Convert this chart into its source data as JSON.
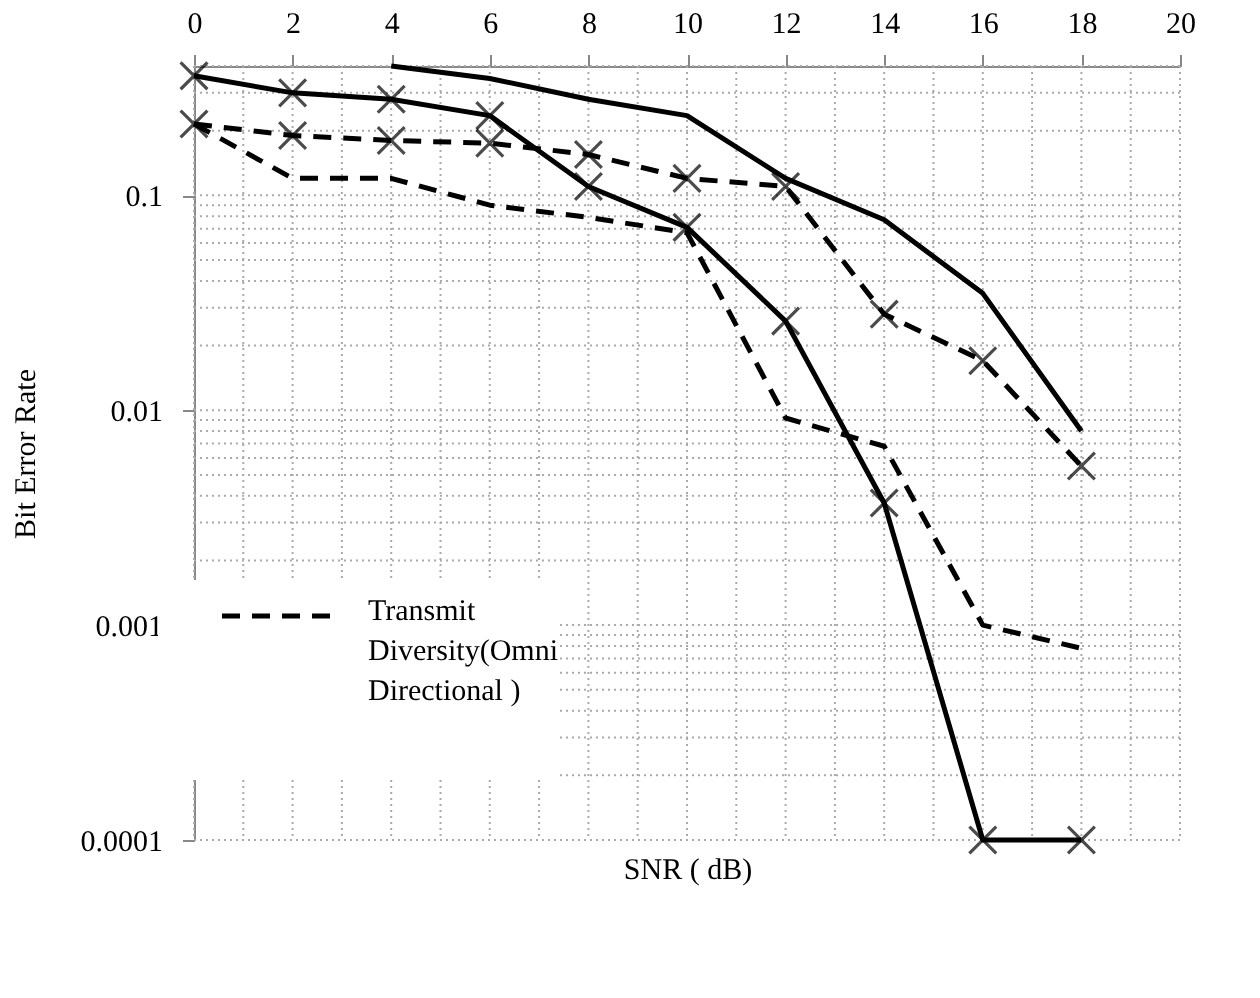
{
  "chart_data": {
    "type": "line",
    "xlabel": "SNR ( dB)",
    "ylabel": "Bit Error Rate",
    "x": [
      0,
      2,
      4,
      6,
      8,
      10,
      12,
      14,
      16,
      18
    ],
    "xlim": [
      0,
      20
    ],
    "xticks": [
      0,
      2,
      4,
      6,
      8,
      10,
      12,
      14,
      16,
      18,
      20
    ],
    "ylim": [
      0.0001,
      0.4
    ],
    "yticks": [
      0.0001,
      0.001,
      0.01,
      0.1
    ],
    "log": "y",
    "grid": true,
    "legend": "bottom left",
    "series": [
      {
        "color": "#000000",
        "line_style": "solid",
        "marker": "none",
        "values": [
          null,
          null,
          0.4,
          0.35,
          0.28,
          0.235,
          0.12,
          0.077,
          0.035,
          0.008
        ]
      },
      {
        "color": "#000000",
        "line_style": "solid",
        "marker": "cross",
        "values": [
          0.36,
          0.3,
          0.28,
          0.235,
          0.11,
          0.071,
          0.026,
          0.0037,
          0.0001,
          0.0001
        ]
      },
      {
        "color": "#000000",
        "line_style": "dashed",
        "marker": "cross",
        "values": [
          0.215,
          0.19,
          0.18,
          0.175,
          0.155,
          0.12,
          0.11,
          0.028,
          0.017,
          0.0055
        ]
      },
      {
        "name": "Transmit Diversity(Omni Directional )",
        "color": "#000000",
        "line_style": "dashed",
        "marker": "none",
        "values": [
          0.215,
          0.12,
          0.12,
          0.09,
          0.079,
          0.067,
          0.0092,
          0.0068,
          0.001,
          0.00078
        ]
      }
    ]
  }
}
